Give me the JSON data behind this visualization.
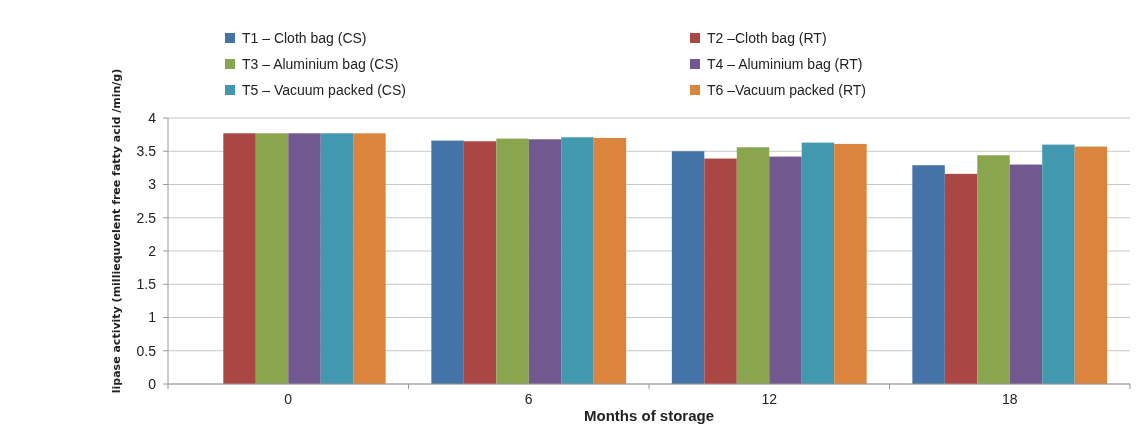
{
  "chart_data": {
    "type": "bar",
    "xlabel": "Months of storage",
    "ylabel": "lipase activity (milliequvelent free fatty acid /min/g)",
    "categories": [
      "0",
      "6",
      "12",
      "18"
    ],
    "series": [
      {
        "name": "T1  – Cloth bag (CS)",
        "color": "#4572a7",
        "values": [
          null,
          3.66,
          3.5,
          3.29
        ]
      },
      {
        "name": "T2 –Cloth bag (RT)",
        "color": "#aa4643",
        "values": [
          3.77,
          3.65,
          3.39,
          3.16
        ]
      },
      {
        "name": "T3 – Aluminium bag (CS)",
        "color": "#89a54e",
        "values": [
          3.77,
          3.69,
          3.56,
          3.44
        ]
      },
      {
        "name": "T4 – Aluminium bag (RT)",
        "color": "#71588f",
        "values": [
          3.77,
          3.68,
          3.42,
          3.3
        ]
      },
      {
        "name": "T5 –  Vacuum packed  (CS)",
        "color": "#4198af",
        "values": [
          3.77,
          3.71,
          3.63,
          3.6
        ]
      },
      {
        "name": "T6 –Vacuum packed (RT)",
        "color": "#db843d",
        "values": [
          3.77,
          3.7,
          3.61,
          3.57
        ]
      }
    ],
    "ylim": [
      0,
      4
    ],
    "yticks": [
      0,
      0.5,
      1,
      1.5,
      2,
      2.5,
      3,
      3.5,
      4
    ],
    "grid": "y",
    "legend": "top"
  }
}
